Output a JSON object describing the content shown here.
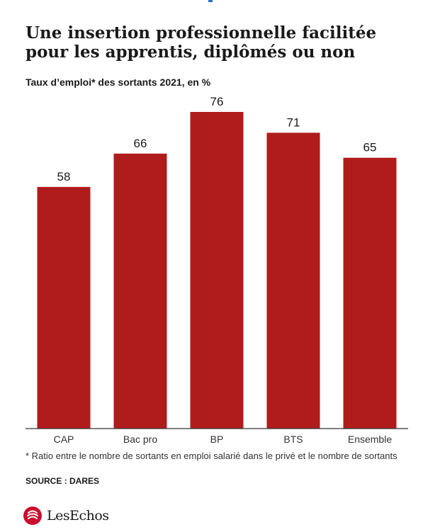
{
  "header": {
    "title": "Une insertion professionnelle facilitée pour les apprentis, diplômés ou non",
    "subtitle": "Taux d’emploi* des sortants 2021, en %"
  },
  "chart_data": {
    "type": "bar",
    "categories": [
      "CAP",
      "Bac pro",
      "BP",
      "BTS",
      "Ensemble"
    ],
    "values": [
      58,
      66,
      76,
      71,
      65
    ],
    "value_labels": [
      "58",
      "66",
      "76",
      "71",
      "65"
    ],
    "title": "Une insertion professionnelle facilitée pour les apprentis, diplômés ou non",
    "subtitle": "Taux d’emploi* des sortants 2021, en %",
    "xlabel": "",
    "ylabel": "",
    "ylim": [
      0,
      76
    ],
    "grid": false,
    "bar_color": "#b01c1c"
  },
  "footer": {
    "footnote": "* Ratio entre le nombre de sortants en emploi salarié dans le privé et le nombre de sortants",
    "source": "SOURCE : DARES",
    "brand_name": "LesEchos",
    "brand_color": "#c8102e"
  }
}
